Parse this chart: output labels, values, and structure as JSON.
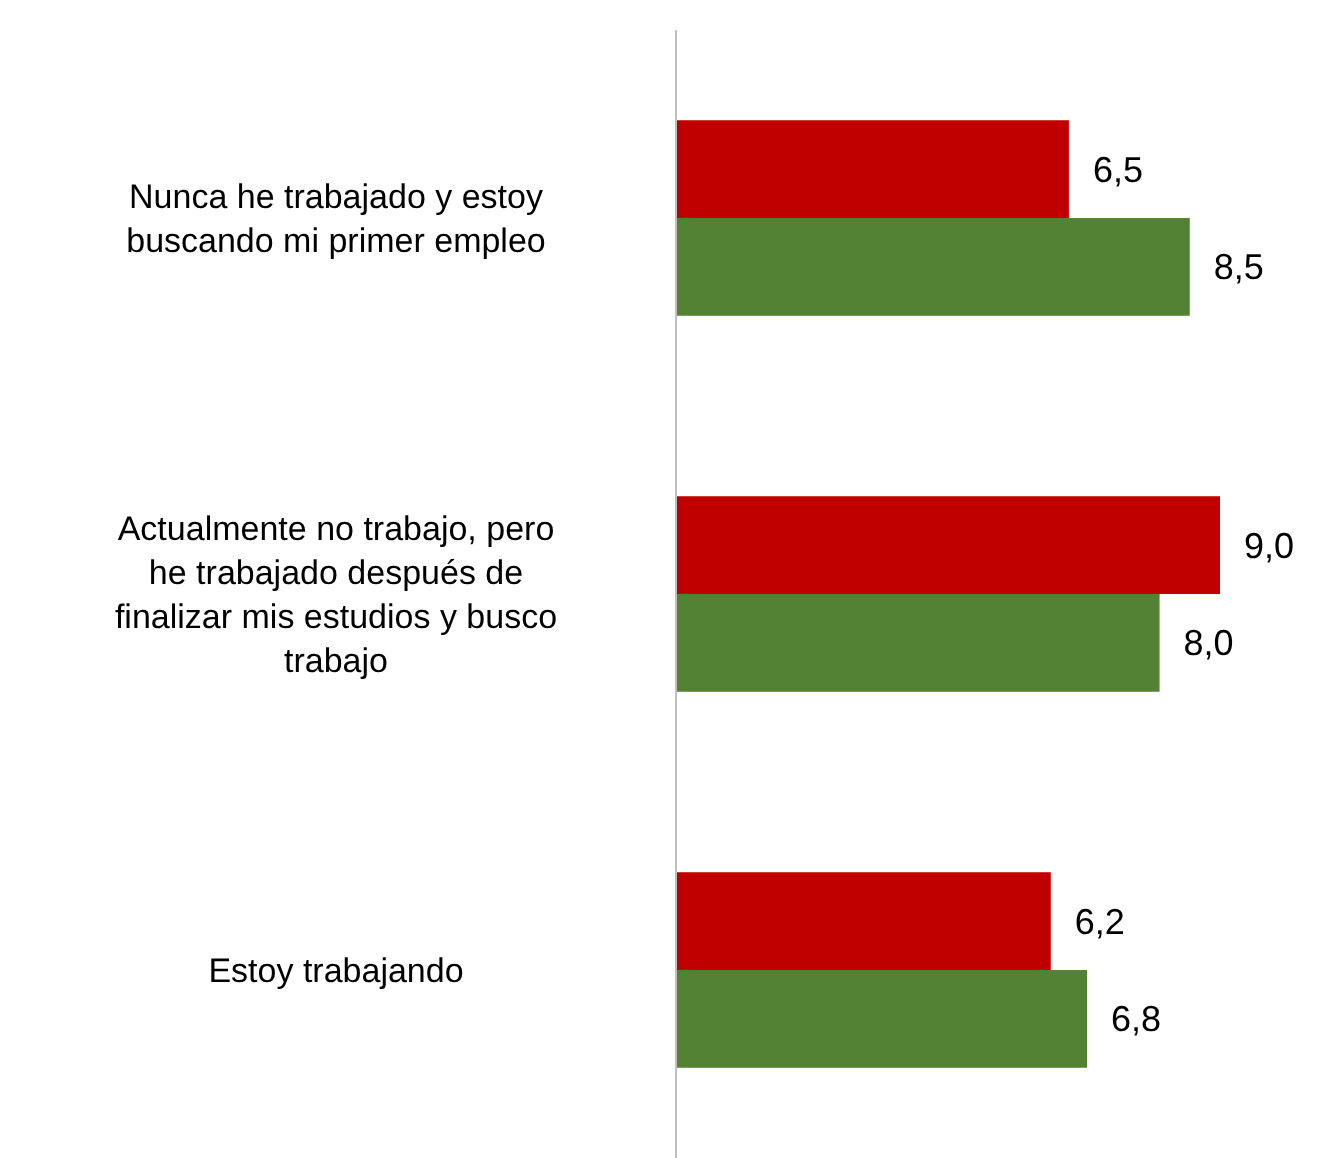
{
  "chart_data": {
    "type": "bar",
    "orientation": "horizontal",
    "categories": [
      "Nunca he trabajado y estoy buscando mi primer empleo",
      "Actualmente no trabajo, pero he trabajado después de finalizar mis estudios y busco trabajo",
      "Estoy trabajando"
    ],
    "series": [
      {
        "color": "#c00000",
        "values": [
          6.5,
          9.0,
          6.2
        ],
        "value_labels": [
          "6,5",
          "9,0",
          "6,2"
        ]
      },
      {
        "color": "#548235",
        "values": [
          8.5,
          8.0,
          6.8
        ],
        "value_labels": [
          "8,5",
          "8,0",
          "6,8"
        ]
      }
    ],
    "tick_labels": "y"
  }
}
